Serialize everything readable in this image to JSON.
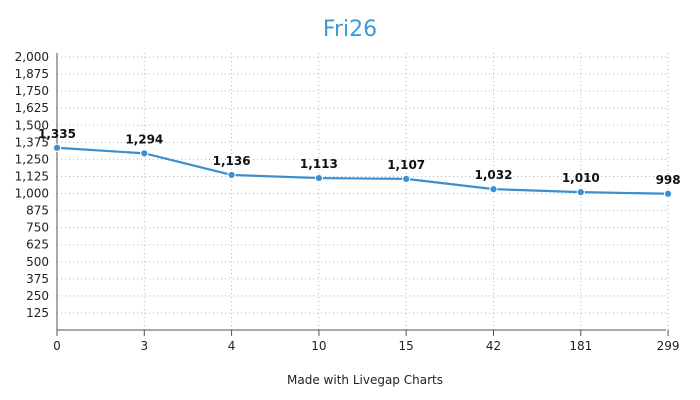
{
  "chart_data": {
    "type": "line",
    "title": "Fri26",
    "categories": [
      "0",
      "3",
      "4",
      "10",
      "15",
      "42",
      "181",
      "299"
    ],
    "series": [
      {
        "values": [
          1335,
          1294,
          1136,
          1113,
          1107,
          1032,
          1010,
          998
        ]
      }
    ],
    "data_labels": [
      "1,335",
      "1,294",
      "1,136",
      "1,113",
      "1,107",
      "1,032",
      "1,010",
      "998"
    ],
    "yticks": [
      {
        "value": 125,
        "label": "125"
      },
      {
        "value": 250,
        "label": "250"
      },
      {
        "value": 375,
        "label": "375"
      },
      {
        "value": 500,
        "label": "500"
      },
      {
        "value": 625,
        "label": "625"
      },
      {
        "value": 750,
        "label": "750"
      },
      {
        "value": 875,
        "label": "875"
      },
      {
        "value": 1000,
        "label": "1,000"
      },
      {
        "value": 1125,
        "label": "1,125"
      },
      {
        "value": 1250,
        "label": "1,250"
      },
      {
        "value": 1375,
        "label": "1,375"
      },
      {
        "value": 1500,
        "label": "1,500"
      },
      {
        "value": 1625,
        "label": "1,625"
      },
      {
        "value": 1750,
        "label": "1,750"
      },
      {
        "value": 1875,
        "label": "1,875"
      },
      {
        "value": 2000,
        "label": "2,000"
      }
    ],
    "ylim": [
      0,
      2000
    ],
    "grid": true,
    "colors": {
      "line": "#3a8fd0",
      "title": "#3a9bd5"
    }
  },
  "footer": {
    "credit": "Made with Livegap Charts"
  }
}
